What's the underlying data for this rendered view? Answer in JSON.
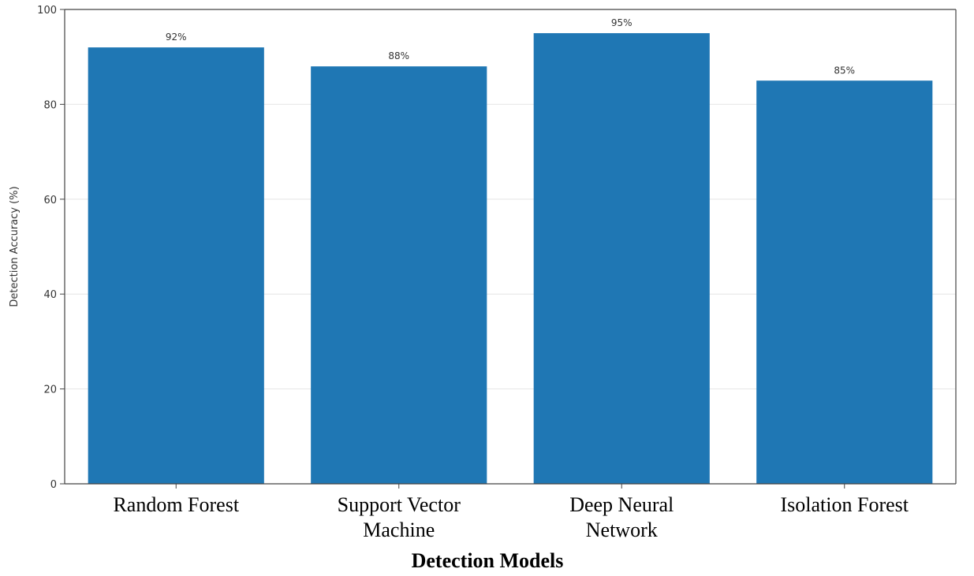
{
  "chart_data": {
    "type": "bar",
    "categories": [
      [
        "Random Forest"
      ],
      [
        "Support Vector",
        "Machine"
      ],
      [
        "Deep Neural",
        "Network"
      ],
      [
        "Isolation Forest"
      ]
    ],
    "values": [
      92,
      88,
      95,
      85
    ],
    "data_labels": [
      "92%",
      "88%",
      "95%",
      "85%"
    ],
    "xlabel": "Detection Models",
    "ylabel": "Detection Accuracy (%)",
    "ylim": [
      0,
      100
    ],
    "yticks": [
      0,
      20,
      40,
      60,
      80,
      100
    ],
    "grid": "horizontal",
    "colors": {
      "bar": "#1f77b4"
    }
  }
}
